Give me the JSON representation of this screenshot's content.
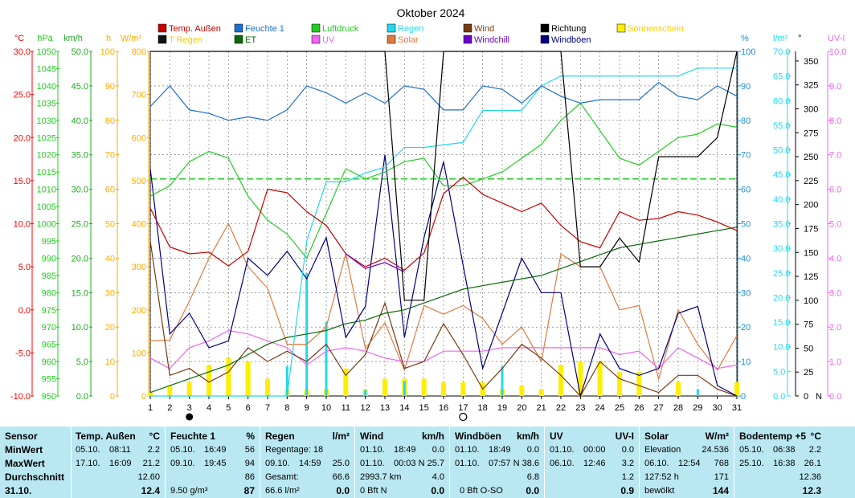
{
  "title": "Oktober 2024",
  "colors": {
    "temp": "#c80000",
    "feuchte": "#1e6ed2",
    "luftdruck": "#22cc22",
    "regen": "#22d8ee",
    "wind": "#7a3a10",
    "richtung": "#000000",
    "sonne": "#ffee00",
    "tregen": "#111111",
    "et": "#0a6a0a",
    "uv": "#ee66ee",
    "solar": "#e07a40",
    "windchill": "#6a00cc",
    "windboeen": "#000080",
    "grid": "#666666",
    "axis_temp": "#ff0000",
    "axis_hpa": "#22cc22",
    "axis_kmh": "#22aa22",
    "axis_h": "#ffaa00",
    "axis_wm2": "#ffaa00",
    "axis_pct": "#1e90d2",
    "axis_lm2": "#22d8ee",
    "axis_deg": "#000000",
    "axis_uvi": "#ee66ee"
  },
  "chart_data": {
    "type": "line",
    "title": "Oktober 2024",
    "x": [
      1,
      2,
      3,
      4,
      5,
      6,
      7,
      8,
      9,
      10,
      11,
      12,
      13,
      14,
      15,
      16,
      17,
      18,
      19,
      20,
      21,
      22,
      23,
      24,
      25,
      26,
      27,
      28,
      29,
      30,
      31
    ],
    "axes": {
      "temp": {
        "label": "°C",
        "range": [
          -10,
          30
        ],
        "ticks": [
          "30.0",
          "25.0",
          "20.0",
          "15.0",
          "10.0",
          "5.0",
          "0.0",
          "-5.0",
          "-10.0"
        ]
      },
      "hpa": {
        "label": "hPa",
        "range": [
          950,
          1050
        ],
        "ticks": [
          "1050",
          "1045",
          "1040",
          "1035",
          "1030",
          "1025",
          "1020",
          "1015",
          "1010",
          "1005",
          "1000",
          "995",
          "990",
          "985",
          "980",
          "975",
          "970",
          "965",
          "960",
          "955",
          "950"
        ]
      },
      "kmh": {
        "label": "km/h",
        "range": [
          0,
          50
        ],
        "ticks": [
          "50.0",
          "45.0",
          "40.0",
          "35.0",
          "30.0",
          "25.0",
          "20.0",
          "15.0",
          "10.0",
          "5.0",
          "0.0"
        ]
      },
      "h": {
        "label": "h",
        "range": [
          0,
          100
        ],
        "ticks": [
          "100",
          "90",
          "80",
          "70",
          "60",
          "50",
          "40",
          "30",
          "20",
          "10",
          "0"
        ]
      },
      "wm2": {
        "label": "W/m²",
        "range": [
          0,
          800
        ],
        "ticks": [
          "800",
          "700",
          "600",
          "500",
          "400",
          "300",
          "200",
          "100",
          "0"
        ]
      },
      "pct": {
        "label": "%",
        "range": [
          0,
          100
        ],
        "ticks": [
          "100",
          "90",
          "80",
          "70",
          "60",
          "50",
          "40",
          "30",
          "20",
          "10",
          "0"
        ]
      },
      "lm2": {
        "label": "l/m²",
        "range": [
          0,
          70
        ],
        "ticks": [
          "70.0",
          "65.0",
          "60.0",
          "55.0",
          "50.0",
          "45.0",
          "40.0",
          "35.0",
          "30.0",
          "25.0",
          "20.0",
          "15.0",
          "10.0",
          "5.0",
          "0.0"
        ]
      },
      "deg": {
        "label": "°",
        "range": [
          0,
          360
        ],
        "ticks": [
          "350",
          "325",
          "300",
          "275",
          "250",
          "225",
          "200",
          "175",
          "150",
          "125",
          "100",
          "75",
          "50",
          "25",
          "0",
          "N"
        ]
      },
      "uvi": {
        "label": "UV-I",
        "range": [
          0,
          10
        ],
        "ticks": [
          "10.0",
          "9.0",
          "8.0",
          "7.0",
          "6.0",
          "5.0",
          "4.0",
          "3.0",
          "2.0",
          "1.0",
          "0.0"
        ]
      }
    },
    "legend": [
      {
        "key": "temp",
        "label": "Temp. Außen"
      },
      {
        "key": "feuchte",
        "label": "Feuchte 1"
      },
      {
        "key": "luftdruck",
        "label": "Luftdruck"
      },
      {
        "key": "regen",
        "label": "Regen"
      },
      {
        "key": "wind",
        "label": "Wind"
      },
      {
        "key": "richtung",
        "label": "Richtung"
      },
      {
        "key": "sonne",
        "label": "Sonnenschein"
      },
      {
        "key": "tregen",
        "label": "T Regen"
      },
      {
        "key": "et",
        "label": "ET"
      },
      {
        "key": "uv",
        "label": "UV"
      },
      {
        "key": "solar",
        "label": "Solar"
      },
      {
        "key": "windchill",
        "label": "Windchill"
      },
      {
        "key": "windboeen",
        "label": "Windböen"
      }
    ],
    "series": [
      {
        "name": "Temp. Außen",
        "axis": "temp",
        "color": "temp",
        "values": [
          11.8,
          7.3,
          6.5,
          6.7,
          5.1,
          6.8,
          14.0,
          13.6,
          11.4,
          9.8,
          6.5,
          5.0,
          6.0,
          4.6,
          6.6,
          13.5,
          15.4,
          13.4,
          12.4,
          11.4,
          12.4,
          9.8,
          7.9,
          7.2,
          11.4,
          10.4,
          10.6,
          11.4,
          11.0,
          10.2,
          9.2
        ]
      },
      {
        "name": "Windchill",
        "axis": "temp",
        "color": "windchill",
        "values": [
          null,
          null,
          null,
          null,
          null,
          null,
          null,
          null,
          null,
          null,
          6.5,
          4.8,
          5.5,
          4.4,
          null,
          null,
          null,
          null,
          null,
          null,
          null,
          null,
          null,
          null,
          null,
          null,
          null,
          null,
          null,
          null,
          null
        ]
      },
      {
        "name": "Feuchte 1",
        "axis": "pct",
        "color": "feuchte",
        "values": [
          84,
          90,
          83,
          82,
          80,
          81,
          80,
          83,
          90,
          88,
          85,
          88,
          85,
          90,
          89,
          83,
          83,
          90,
          89,
          85,
          90,
          87,
          85,
          86,
          86,
          86,
          91,
          87,
          86,
          90,
          87
        ]
      },
      {
        "name": "Luftdruck",
        "axis": "hpa",
        "color": "luftdruck",
        "values": [
          1008,
          1011,
          1018,
          1021,
          1019,
          1008,
          1001,
          997,
          990,
          1003,
          1016,
          1013,
          1015,
          1018,
          1019,
          1011,
          1011,
          1013,
          1015,
          1019,
          1023,
          1030,
          1035,
          1027,
          1019,
          1017,
          1021,
          1025,
          1026,
          1029,
          1028
        ]
      },
      {
        "name": "Regen",
        "axis": "lm2",
        "color": "regen",
        "values": [
          0,
          0,
          0,
          0,
          0,
          0,
          0,
          0,
          31.5,
          43.5,
          43.5,
          45.3,
          46.5,
          50.5,
          50.5,
          51.0,
          51.5,
          58,
          58,
          58,
          63,
          65,
          65,
          65,
          65,
          65,
          65,
          65,
          66.6,
          66.6,
          66.6
        ]
      },
      {
        "name": "ET",
        "axis": "pct",
        "color": "et",
        "values": [
          1,
          3,
          5,
          7,
          9,
          12,
          15,
          17,
          18,
          19,
          21,
          22,
          24,
          25,
          27,
          29,
          31,
          32,
          33,
          34,
          35,
          37,
          39,
          41,
          43,
          44,
          45,
          46,
          47,
          48,
          49
        ]
      },
      {
        "name": "Solar",
        "axis": "wm2",
        "color": "solar",
        "values": [
          128,
          130,
          220,
          320,
          400,
          300,
          250,
          120,
          120,
          160,
          330,
          110,
          170,
          60,
          210,
          190,
          210,
          180,
          120,
          160,
          80,
          330,
          300,
          300,
          200,
          210,
          40,
          200,
          120,
          60,
          140
        ]
      },
      {
        "name": "UV",
        "axis": "uvi",
        "color": "uv",
        "values": [
          1.1,
          0.8,
          1.4,
          1.6,
          1.9,
          1.8,
          1.6,
          1.4,
          0.9,
          1.3,
          1.4,
          1.3,
          1.1,
          1.0,
          1.0,
          1.3,
          1.3,
          1.3,
          1.4,
          1.4,
          1.4,
          1.4,
          1.4,
          1.4,
          1.2,
          1.3,
          0.8,
          1.4,
          1.1,
          0.8,
          0.9
        ]
      },
      {
        "name": "Wind",
        "axis": "kmh",
        "color": "wind",
        "values": [
          22.5,
          3.0,
          4.0,
          2.0,
          3.5,
          7.0,
          5.0,
          6.5,
          5.0,
          7.5,
          3.0,
          6.0,
          13.5,
          4.0,
          5.0,
          10.5,
          6.0,
          1.0,
          4.0,
          7.5,
          5.5,
          3.0,
          0.0,
          5.0,
          2.5,
          1.5,
          0.5,
          3.0,
          3.0,
          1.0,
          0.0
        ]
      },
      {
        "name": "Windböen",
        "axis": "kmh",
        "color": "windboeen",
        "values": [
          33.0,
          9.0,
          12.0,
          7.0,
          8.0,
          20.0,
          17.5,
          21.0,
          17.0,
          23.0,
          8.5,
          13.0,
          35.0,
          8.5,
          23.0,
          34.0,
          19.0,
          4.0,
          12.0,
          20.0,
          15.0,
          15.0,
          0.0,
          9.0,
          4.0,
          3.0,
          4.0,
          12.0,
          13.0,
          1.5,
          0.0
        ]
      },
      {
        "name": "Richtung",
        "axis": "deg",
        "color": "richtung",
        "values": [
          360,
          360,
          360,
          360,
          360,
          360,
          360,
          360,
          360,
          360,
          360,
          360,
          360,
          100,
          100,
          360,
          360,
          360,
          360,
          360,
          360,
          360,
          135,
          135,
          165,
          140,
          250,
          250,
          250,
          270,
          360
        ]
      },
      {
        "name": "Sonnenschein",
        "axis": "h",
        "color": "sonne",
        "type": "bar",
        "values": [
          1,
          3,
          4,
          9,
          11,
          10,
          5,
          2,
          2,
          2,
          8,
          2,
          5,
          5,
          5,
          4,
          4,
          4,
          2,
          3,
          2,
          9,
          10,
          10,
          7,
          7,
          0,
          4,
          0,
          0,
          4
        ]
      },
      {
        "name": "T Regen",
        "axis": "lm2",
        "color": "regen",
        "type": "bar",
        "values": [
          0,
          0,
          0,
          0,
          0,
          0,
          0.2,
          0,
          0,
          0,
          0,
          1.2,
          0,
          0,
          0,
          0,
          0,
          0,
          6.0,
          0,
          0,
          0,
          0,
          0,
          0,
          0,
          0,
          0,
          1.4,
          0,
          0
        ]
      },
      {
        "name": "Regen-Tag",
        "axis": "lm2",
        "color": "regen",
        "type": "spike",
        "values": [
          0,
          0,
          0,
          0,
          0,
          0,
          0,
          6,
          25,
          15,
          0,
          1,
          0,
          3,
          0,
          0,
          0,
          0,
          0,
          0,
          0,
          0,
          0,
          0,
          0,
          0,
          0,
          0,
          0,
          0,
          0
        ]
      }
    ],
    "reference_line": {
      "name": "Luftdruck Mittel",
      "axis": "hpa",
      "value": 1013
    },
    "moon": {
      "new": 3,
      "full": 17
    },
    "grid": true,
    "legend_position": "top"
  },
  "table": {
    "sensor": {
      "title": "Sensor",
      "rows": [
        "MinWert",
        "MaxWert",
        "Durchschnitt",
        "31.10."
      ]
    },
    "temp": {
      "title": "Temp. Außen",
      "unit": "°C",
      "min": [
        "05.10.",
        "08:11",
        "2.2"
      ],
      "max": [
        "17.10.",
        "16:09",
        "21.2"
      ],
      "avg": "12.60",
      "cur": "12.4"
    },
    "feuchte": {
      "title": "Feuchte 1",
      "unit": "%",
      "min": [
        "05.10.",
        "16:49",
        "56"
      ],
      "max": [
        "09.10.",
        "19:45",
        "94"
      ],
      "avg": "86",
      "extra": "9.50 g/m³",
      "cur": "87"
    },
    "regen": {
      "title": "Regen",
      "unit": "l/m²",
      "r1": [
        "Regentage: 18",
        ""
      ],
      "r2": [
        "09.10.",
        "14:59",
        "25.0"
      ],
      "r3": [
        "Gesamt:",
        "66.6"
      ],
      "r4": [
        "66.6 l/m²",
        "0.0"
      ]
    },
    "wind": {
      "title": "Wind",
      "unit": "km/h",
      "r1": [
        "01.10.",
        "18:49",
        "0.0"
      ],
      "r2": [
        "01.10.",
        "00:03",
        "N 25.7"
      ],
      "r3": [
        "2993.7 km",
        "4.0"
      ],
      "r4": [
        "0 Bft N",
        "0.0"
      ]
    },
    "boeen": {
      "title": "Windböen",
      "unit": "km/h",
      "r1": [
        "01.10.",
        "18:49",
        "0.0"
      ],
      "r2": [
        "01.10.",
        "07:57",
        "N 38.6"
      ],
      "r3": [
        "",
        "6.8"
      ],
      "r4": [
        "0 Bft O-SO",
        "0.0"
      ]
    },
    "uv": {
      "title": "UV",
      "unit": "UV-I",
      "r1": [
        "01.10.",
        "00:00",
        "0.0"
      ],
      "r2": [
        "06.10.",
        "12:46",
        "3.2"
      ],
      "r3": [
        "",
        "1.2"
      ],
      "r4": [
        "",
        "0.9"
      ]
    },
    "solar": {
      "title": "Solar",
      "unit": "W/m²",
      "r1": [
        "Elevation",
        "24.536"
      ],
      "r2": [
        "06.10.",
        "12:54",
        "768"
      ],
      "r3": [
        "127:52 h",
        "171"
      ],
      "r4": [
        "bewölkt",
        "144"
      ]
    },
    "boden": {
      "title": "Bodentemp +5",
      "unit": "°C",
      "r1": [
        "05.10.",
        "06:38",
        "2.2"
      ],
      "r2": [
        "25.10.",
        "16:38",
        "26.1"
      ],
      "r3": [
        "",
        "12.36"
      ],
      "r4": [
        "",
        "12.3"
      ]
    }
  }
}
